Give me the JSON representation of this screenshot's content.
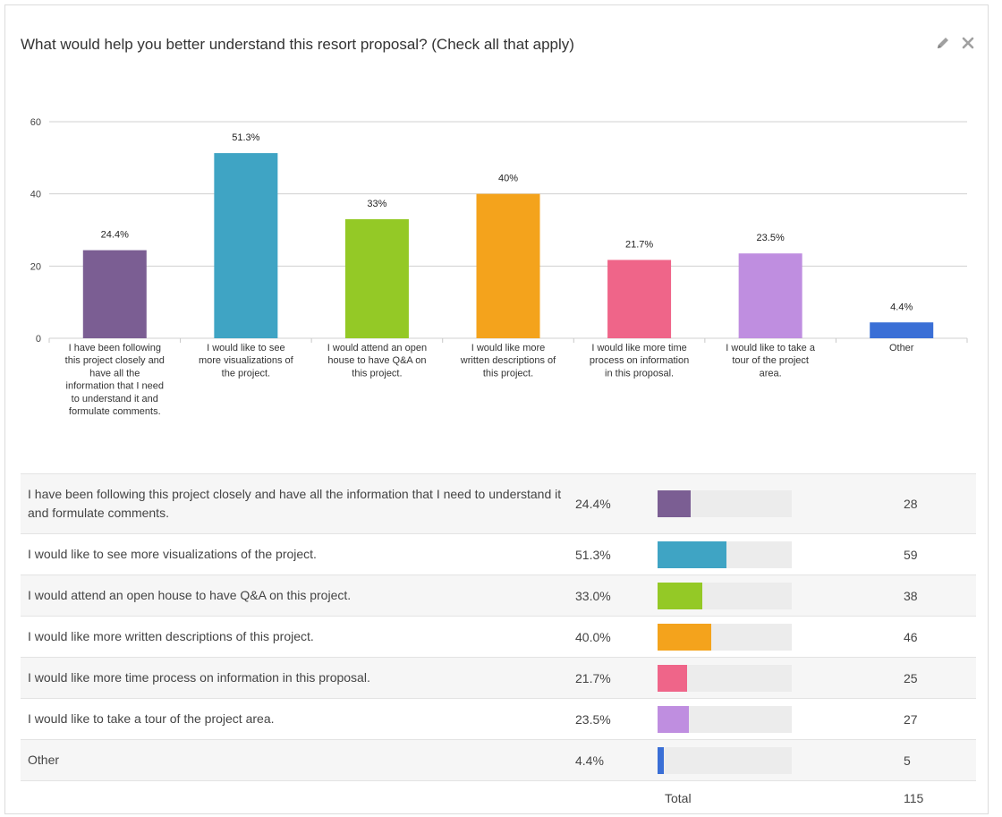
{
  "question": {
    "title": "What would help you better understand this resort proposal? (Check all that apply)"
  },
  "icons": {
    "edit": "pencil-icon",
    "close": "close-icon"
  },
  "colors": [
    "#7b5e93",
    "#3fa4c4",
    "#94c926",
    "#f4a31c",
    "#ef6589",
    "#bf8ee0",
    "#3a6fd6"
  ],
  "chart_data": {
    "type": "bar",
    "categories": [
      "I have been following this project closely and have all the information that I need to understand it and formulate comments.",
      "I would like to see more visualizations of the project.",
      "I would attend an open house to have Q&A on this project.",
      "I would like more written descriptions of this project.",
      "I would like more time process on information in this proposal.",
      "I would like to take a tour of the project area.",
      "Other"
    ],
    "category_lines": [
      [
        "I have been following",
        "this project closely and",
        "have all the",
        "information that I need",
        "to understand it and",
        "formulate comments."
      ],
      [
        "I would like to see",
        "more visualizations of",
        "the project."
      ],
      [
        "I would attend an open",
        "house to have Q&A on",
        "this project."
      ],
      [
        "I would like more",
        "written descriptions of",
        "this project."
      ],
      [
        "I would like more time",
        "process on information",
        "in this proposal."
      ],
      [
        "I would like to take a",
        "tour of the project",
        "area."
      ],
      [
        "Other"
      ]
    ],
    "values": [
      24.4,
      51.3,
      33,
      40,
      21.7,
      23.5,
      4.4
    ],
    "value_labels": [
      "24.4%",
      "51.3%",
      "33%",
      "40%",
      "21.7%",
      "23.5%",
      "4.4%"
    ],
    "yticks": [
      "0",
      "20",
      "40",
      "60"
    ],
    "ylim": [
      0,
      60
    ],
    "grid": true
  },
  "table": {
    "rows": [
      {
        "label": "I have been following this project closely and have all the information that I need to understand it and formulate comments.",
        "percent": "24.4%",
        "share": 24.4,
        "count": "28"
      },
      {
        "label": "I would like to see more visualizations of the project.",
        "percent": "51.3%",
        "share": 51.3,
        "count": "59"
      },
      {
        "label": "I would attend an open house to have Q&A on this project.",
        "percent": "33.0%",
        "share": 33.0,
        "count": "38"
      },
      {
        "label": "I would like more written descriptions of this project.",
        "percent": "40.0%",
        "share": 40.0,
        "count": "46"
      },
      {
        "label": "I would like more time process on information in this proposal.",
        "percent": "21.7%",
        "share": 21.7,
        "count": "25"
      },
      {
        "label": "I would like to take a tour of the project area.",
        "percent": "23.5%",
        "share": 23.5,
        "count": "27"
      },
      {
        "label": "Other",
        "percent": "4.4%",
        "share": 4.4,
        "count": "5"
      }
    ],
    "total_label": "Total",
    "total_value": "115"
  }
}
